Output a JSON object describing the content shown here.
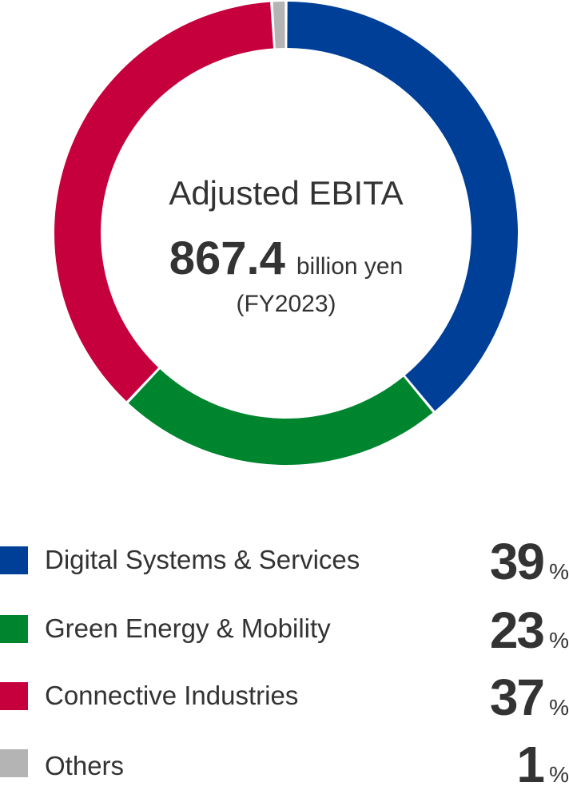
{
  "chart_data": {
    "type": "pie",
    "center": {
      "title": "Adjusted EBITA",
      "value": "867.4",
      "unit": "billion yen",
      "period": "(FY2023)"
    },
    "categories": [
      "Digital Systems & Services",
      "Green Energy & Mobility",
      "Connective Industries",
      "Others"
    ],
    "values": [
      39,
      23,
      37,
      1
    ],
    "value_suffix": "%",
    "colors": [
      "#003f98",
      "#00852f",
      "#c6003d",
      "#b4b4b4"
    ],
    "legend_placement": "bottom"
  }
}
